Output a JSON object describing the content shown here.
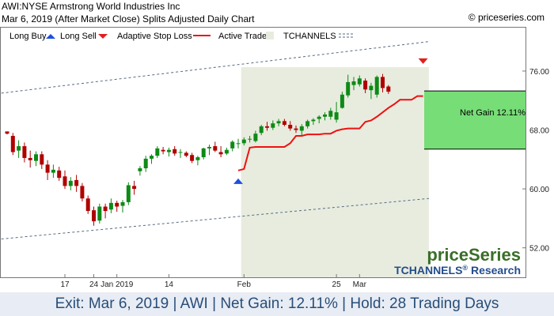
{
  "header": {
    "title": "AWI:NYSE Armstrong World Industries Inc",
    "subtitle": "Mar 6, 2019 (After Market Close)  Splits Adjusted Daily Chart",
    "copyright": "© priceseries.com"
  },
  "legend": {
    "long_buy": "Long Buy",
    "long_sell": "Long Sell",
    "stop": "Adaptive Stop Loss",
    "active": "Active Trade",
    "channels": "TCHANNELS"
  },
  "colors": {
    "bull": "#0e8a16",
    "bear": "#b00000",
    "stop": "#ee1111",
    "active_shade": "#e8ecdf",
    "gain_box": "#77dd77",
    "buy_arrow": "#1d4fe0",
    "sell_arrow": "#e02020",
    "footer_text": "#274e79",
    "brand_green": "#3a6e28",
    "brand_blue": "#234d8c"
  },
  "branding": {
    "logo": "priceSeries",
    "product": "TCHANNELS",
    "reg": "®",
    "research": "Research"
  },
  "net_gain_label": "Net Gain 12.11%",
  "footer": "Exit: Mar 6, 2019 | AWI | Net Gain: 12.11% | Hold: 28 Trading Days",
  "chart_data": {
    "type": "candlestick",
    "y_ticks": [
      52,
      60,
      68,
      76
    ],
    "y_tick_labels": [
      "52.00",
      "60.00",
      "68.00",
      "76.00"
    ],
    "ylim": [
      48,
      82
    ],
    "x_tick_labels": [
      {
        "label": "17",
        "index": 10
      },
      {
        "label": "24",
        "index": 15
      },
      {
        "label": "Jan 2019",
        "index": 19
      },
      {
        "label": "14",
        "index": 28
      },
      {
        "label": "Feb",
        "index": 41
      },
      {
        "label": "25",
        "index": 57
      },
      {
        "label": "Mar",
        "index": 61
      }
    ],
    "candles": [
      [
        67.8,
        67.8,
        67.4,
        67.5
      ],
      [
        67.2,
        67.6,
        64.6,
        65.0
      ],
      [
        65.2,
        66.6,
        64.2,
        65.8
      ],
      [
        65.8,
        66.3,
        63.6,
        64.2
      ],
      [
        64.2,
        65.2,
        62.9,
        63.9
      ],
      [
        63.8,
        65.1,
        63.1,
        64.7
      ],
      [
        64.7,
        65.1,
        62.7,
        63.3
      ],
      [
        63.3,
        63.9,
        61.2,
        62.2
      ],
      [
        62.2,
        63.3,
        61.5,
        62.6
      ],
      [
        62.5,
        63.0,
        61.1,
        61.5
      ],
      [
        61.7,
        62.5,
        60.0,
        60.4
      ],
      [
        60.4,
        61.6,
        59.8,
        61.1
      ],
      [
        61.2,
        61.9,
        59.6,
        60.4
      ],
      [
        60.4,
        60.8,
        58.3,
        58.7
      ],
      [
        58.7,
        59.1,
        56.6,
        57.0
      ],
      [
        57.1,
        57.6,
        55.0,
        55.6
      ],
      [
        55.7,
        58.0,
        55.3,
        57.6
      ],
      [
        57.6,
        58.0,
        56.0,
        57.0
      ],
      [
        57.2,
        58.7,
        56.7,
        58.1
      ],
      [
        58.1,
        58.4,
        56.9,
        57.6
      ],
      [
        57.7,
        58.5,
        56.8,
        58.2
      ],
      [
        58.2,
        60.9,
        57.8,
        60.5
      ],
      [
        60.4,
        61.1,
        59.2,
        60.0
      ],
      [
        62.4,
        63.1,
        61.8,
        62.8
      ],
      [
        62.8,
        64.5,
        62.3,
        64.1
      ],
      [
        64.1,
        64.7,
        63.4,
        64.5
      ],
      [
        64.5,
        65.8,
        64.2,
        65.5
      ],
      [
        65.3,
        65.7,
        64.7,
        65.1
      ],
      [
        65.0,
        65.6,
        64.4,
        65.3
      ],
      [
        65.4,
        65.8,
        64.5,
        64.8
      ],
      [
        64.9,
        65.4,
        64.2,
        65.0
      ],
      [
        64.9,
        65.1,
        64.3,
        64.5
      ],
      [
        64.6,
        64.9,
        63.5,
        63.8
      ],
      [
        63.9,
        64.5,
        63.2,
        64.3
      ],
      [
        64.3,
        65.6,
        64.0,
        65.5
      ],
      [
        65.5,
        66.0,
        64.6,
        65.7
      ],
      [
        65.8,
        66.4,
        65.0,
        65.2
      ],
      [
        65.0,
        65.8,
        64.3,
        64.7
      ],
      [
        64.8,
        65.6,
        64.6,
        65.3
      ],
      [
        65.5,
        66.6,
        65.1,
        66.4
      ],
      [
        66.2,
        66.8,
        65.5,
        66.2
      ],
      [
        66.2,
        67.0,
        65.9,
        66.7
      ],
      [
        66.7,
        67.2,
        66.3,
        66.8
      ],
      [
        66.5,
        67.9,
        66.3,
        67.5
      ],
      [
        67.6,
        68.7,
        67.3,
        68.5
      ],
      [
        68.5,
        69.1,
        67.9,
        68.3
      ],
      [
        68.3,
        69.3,
        68.0,
        68.9
      ],
      [
        68.9,
        69.5,
        68.5,
        69.2
      ],
      [
        69.2,
        69.5,
        68.5,
        68.7
      ],
      [
        68.7,
        69.2,
        67.9,
        68.2
      ],
      [
        68.2,
        68.6,
        67.6,
        68.0
      ],
      [
        67.9,
        68.8,
        67.3,
        68.5
      ],
      [
        68.5,
        69.4,
        68.2,
        69.2
      ],
      [
        69.2,
        69.6,
        68.7,
        69.4
      ],
      [
        69.5,
        70.0,
        68.9,
        69.8
      ],
      [
        69.8,
        70.4,
        69.3,
        70.1
      ],
      [
        69.8,
        71.0,
        69.4,
        70.6
      ],
      [
        69.4,
        71.8,
        69.0,
        70.4
      ],
      [
        71.0,
        73.2,
        70.9,
        72.8
      ],
      [
        72.7,
        75.5,
        72.4,
        74.5
      ],
      [
        74.1,
        75.2,
        73.4,
        74.6
      ],
      [
        74.2,
        75.4,
        73.9,
        75.0
      ],
      [
        74.7,
        75.0,
        73.0,
        73.5
      ],
      [
        73.4,
        74.4,
        72.2,
        74.0
      ],
      [
        72.8,
        75.4,
        72.4,
        75.2
      ],
      [
        75.2,
        75.6,
        73.1,
        73.7
      ],
      [
        73.9,
        74.1,
        72.9,
        73.2
      ]
    ],
    "stop_loss": [
      [
        40,
        62.5
      ],
      [
        41,
        62.7
      ],
      [
        42,
        65.6
      ],
      [
        43,
        65.7
      ],
      [
        44,
        65.7
      ],
      [
        45,
        65.7
      ],
      [
        46,
        65.7
      ],
      [
        47,
        65.7
      ],
      [
        48,
        65.7
      ],
      [
        49,
        66.2
      ],
      [
        50,
        67.2
      ],
      [
        51,
        67.2
      ],
      [
        52,
        67.4
      ],
      [
        53,
        67.4
      ],
      [
        54,
        67.4
      ],
      [
        55,
        67.5
      ],
      [
        56,
        67.5
      ],
      [
        57,
        67.9
      ],
      [
        58,
        68.1
      ],
      [
        59,
        68.2
      ],
      [
        60,
        68.2
      ],
      [
        61,
        68.2
      ],
      [
        62,
        69.1
      ],
      [
        63,
        69.3
      ],
      [
        64,
        69.8
      ],
      [
        65,
        70.4
      ],
      [
        66,
        71.0
      ],
      [
        67,
        71.5
      ],
      [
        68,
        72.1
      ],
      [
        69,
        72.1
      ],
      [
        70,
        72.1
      ],
      [
        71,
        72.6
      ],
      [
        72,
        72.6
      ]
    ],
    "channel_upper": [
      [
        -1,
        73.0
      ],
      [
        73,
        80.0
      ]
    ],
    "channel_lower": [
      [
        -1,
        53.2
      ],
      [
        73,
        58.7
      ]
    ],
    "active_trade_range": [
      40.5,
      73.0
    ],
    "buy_signal": {
      "index": 40,
      "price": 61.2
    },
    "sell_signal": {
      "index": 72,
      "price": 77.3
    },
    "net_gain": {
      "entry": 65.4,
      "exit": 73.3,
      "percent": "12.11%"
    }
  }
}
